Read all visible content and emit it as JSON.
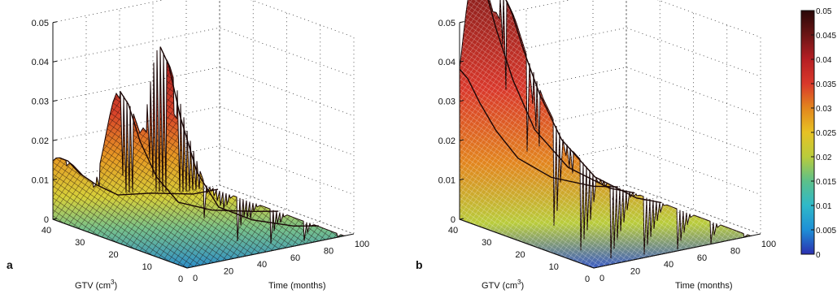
{
  "chart_data": [
    {
      "type": "surface",
      "panel": "a",
      "zlim": [
        0,
        0.05
      ],
      "z_ticks": [
        "0",
        "0.01",
        "0.02",
        "0.03",
        "0.04",
        "0.05"
      ],
      "gtv_ticks": [
        "40",
        "30",
        "20",
        "10",
        "0"
      ],
      "time_ticks": [
        "0",
        "20",
        "40",
        "60",
        "80",
        "100"
      ],
      "xlabel": "GTV (cm³)",
      "ylabel": "Time (months)",
      "grid": true,
      "ridges": [
        {
          "gtv": 8,
          "z_at_time": [
            [
              0,
              0.043
            ],
            [
              5,
              0.039
            ],
            [
              12,
              0.028
            ],
            [
              22,
              0.016
            ],
            [
              35,
              0.008
            ],
            [
              55,
              0.004
            ],
            [
              80,
              0.001
            ],
            [
              95,
              0.0
            ]
          ]
        },
        {
          "gtv": 20,
          "z_at_time": [
            [
              0,
              0.031
            ],
            [
              5,
              0.028
            ],
            [
              12,
              0.02
            ],
            [
              22,
              0.012
            ],
            [
              35,
              0.006
            ],
            [
              55,
              0.003
            ],
            [
              80,
              0.001
            ],
            [
              95,
              0.0
            ]
          ]
        },
        {
          "gtv": 38,
          "z_at_time": [
            [
              0,
              0.013
            ],
            [
              5,
              0.012
            ],
            [
              12,
              0.009
            ],
            [
              22,
              0.006
            ],
            [
              35,
              0.003
            ],
            [
              55,
              0.002
            ],
            [
              80,
              0.0
            ],
            [
              95,
              0.0
            ]
          ]
        }
      ]
    },
    {
      "type": "surface",
      "panel": "b",
      "zlim": [
        0,
        0.05
      ],
      "z_ticks": [
        "0",
        "0.01",
        "0.02",
        "0.03",
        "0.04",
        "0.05"
      ],
      "gtv_ticks": [
        "40",
        "30",
        "20",
        "10",
        "0"
      ],
      "time_ticks": [
        "0",
        "20",
        "40",
        "60",
        "80",
        "100"
      ],
      "xlabel": "GTV (cm³)",
      "ylabel": "Time (months)",
      "grid": true,
      "ridges": [
        {
          "gtv": 27,
          "z_at_time": [
            [
              0,
              0.049
            ],
            [
              5,
              0.045
            ],
            [
              12,
              0.037
            ],
            [
              22,
              0.027
            ],
            [
              35,
              0.017
            ],
            [
              55,
              0.008
            ],
            [
              80,
              0.002
            ],
            [
              95,
              0.0
            ]
          ]
        },
        {
          "gtv": 35,
          "z_at_time": [
            [
              0,
              0.052
            ],
            [
              5,
              0.048
            ],
            [
              12,
              0.039
            ],
            [
              22,
              0.028
            ],
            [
              35,
              0.017
            ],
            [
              55,
              0.008
            ],
            [
              80,
              0.002
            ],
            [
              95,
              0.0
            ]
          ]
        },
        {
          "gtv": 40,
          "z_at_time": [
            [
              0,
              0.027
            ],
            [
              5,
              0.025
            ],
            [
              12,
              0.02
            ],
            [
              22,
              0.015
            ],
            [
              35,
              0.009
            ],
            [
              55,
              0.004
            ],
            [
              80,
              0.001
            ],
            [
              95,
              0.0
            ]
          ]
        }
      ]
    }
  ],
  "colorbar": {
    "range": [
      0,
      0.05
    ],
    "ticks": [
      "0.05",
      "0.045",
      "0.04",
      "0.035",
      "0.03",
      "0.025",
      "0.02",
      "0.015",
      "0.01",
      "0.005",
      "0"
    ],
    "colors": [
      "#2b2fb0",
      "#1e8fd6",
      "#2fb9c9",
      "#5cc08a",
      "#b9cc3c",
      "#e7c224",
      "#e2861e",
      "#d9382b",
      "#b61f24",
      "#6b1515",
      "#2a0808"
    ]
  },
  "labels": {
    "panel_a": "a",
    "panel_b": "b",
    "sup3": "3",
    "gtv": "GTV (cm",
    "gtv_close": ")",
    "time": "Time (months)"
  }
}
